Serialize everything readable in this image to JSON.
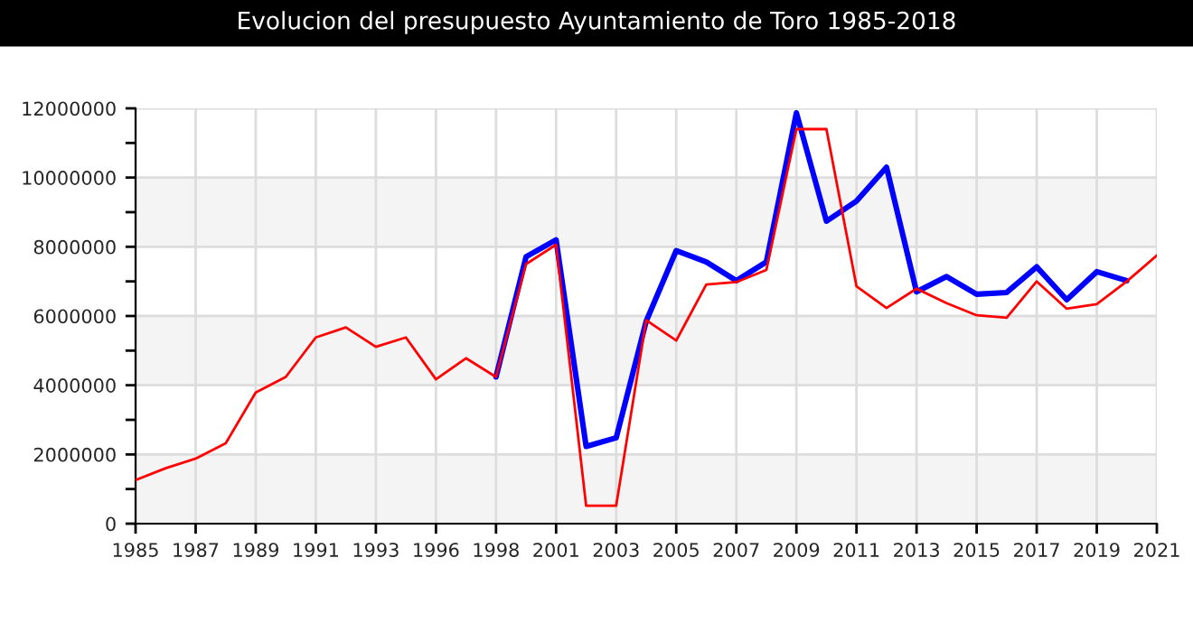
{
  "chart_data": {
    "type": "line",
    "title": "Evolucion del presupuesto Ayuntamiento de Toro 1985-2018",
    "categories": [
      "1985",
      null,
      "1987",
      null,
      "1989",
      null,
      "1991",
      null,
      "1993",
      null,
      "1996",
      null,
      "1998",
      null,
      "2001",
      null,
      "2003",
      null,
      "2005",
      null,
      "2007",
      null,
      "2009",
      null,
      "2011",
      null,
      "2013",
      null,
      "2015",
      null,
      "2017",
      null,
      "2019",
      null,
      "2021"
    ],
    "series": [
      {
        "color": "#0000ff",
        "values": [
          null,
          null,
          null,
          null,
          null,
          null,
          null,
          null,
          null,
          null,
          null,
          null,
          4240000,
          7710000,
          8200000,
          2230000,
          2480000,
          5850000,
          7890000,
          7560000,
          7020000,
          7560000,
          11870000,
          8740000,
          9320000,
          10300000,
          6700000,
          7140000,
          6630000,
          6680000,
          7420000,
          6470000,
          7280000,
          7020000,
          null
        ]
      },
      {
        "color": "#ff0000",
        "values": [
          1260000,
          1600000,
          1880000,
          2320000,
          3790000,
          4240000,
          5380000,
          5670000,
          5110000,
          5380000,
          4170000,
          4780000,
          4240000,
          7500000,
          8060000,
          520000,
          520000,
          5880000,
          5290000,
          6910000,
          6980000,
          7330000,
          11400000,
          11400000,
          6860000,
          6230000,
          6790000,
          6370000,
          6020000,
          5950000,
          7000000,
          6210000,
          6340000,
          7000000,
          7750000
        ]
      }
    ],
    "ylim": [
      0,
      12000000
    ],
    "yticks": [
      0,
      {
        "value": 1000000,
        "label": null
      },
      2000000,
      {
        "value": 3000000,
        "label": null
      },
      4000000,
      {
        "value": 5000000,
        "label": null
      },
      6000000,
      {
        "value": 7000000,
        "label": null
      },
      8000000,
      {
        "value": 9000000,
        "label": null
      },
      10000000,
      {
        "value": 11000000,
        "label": null
      },
      12000000
    ],
    "bands": [
      {
        "axis": "y",
        "from": 0,
        "to": 2000000,
        "color": "#f4f4f4"
      },
      {
        "axis": "y",
        "from": 4000000,
        "to": 6000000,
        "color": "#f4f4f4"
      },
      {
        "axis": "y",
        "from": 8000000,
        "to": 10000000,
        "color": "#f4f4f4"
      }
    ],
    "grid": true,
    "marker": "none",
    "line_style": "solid"
  }
}
